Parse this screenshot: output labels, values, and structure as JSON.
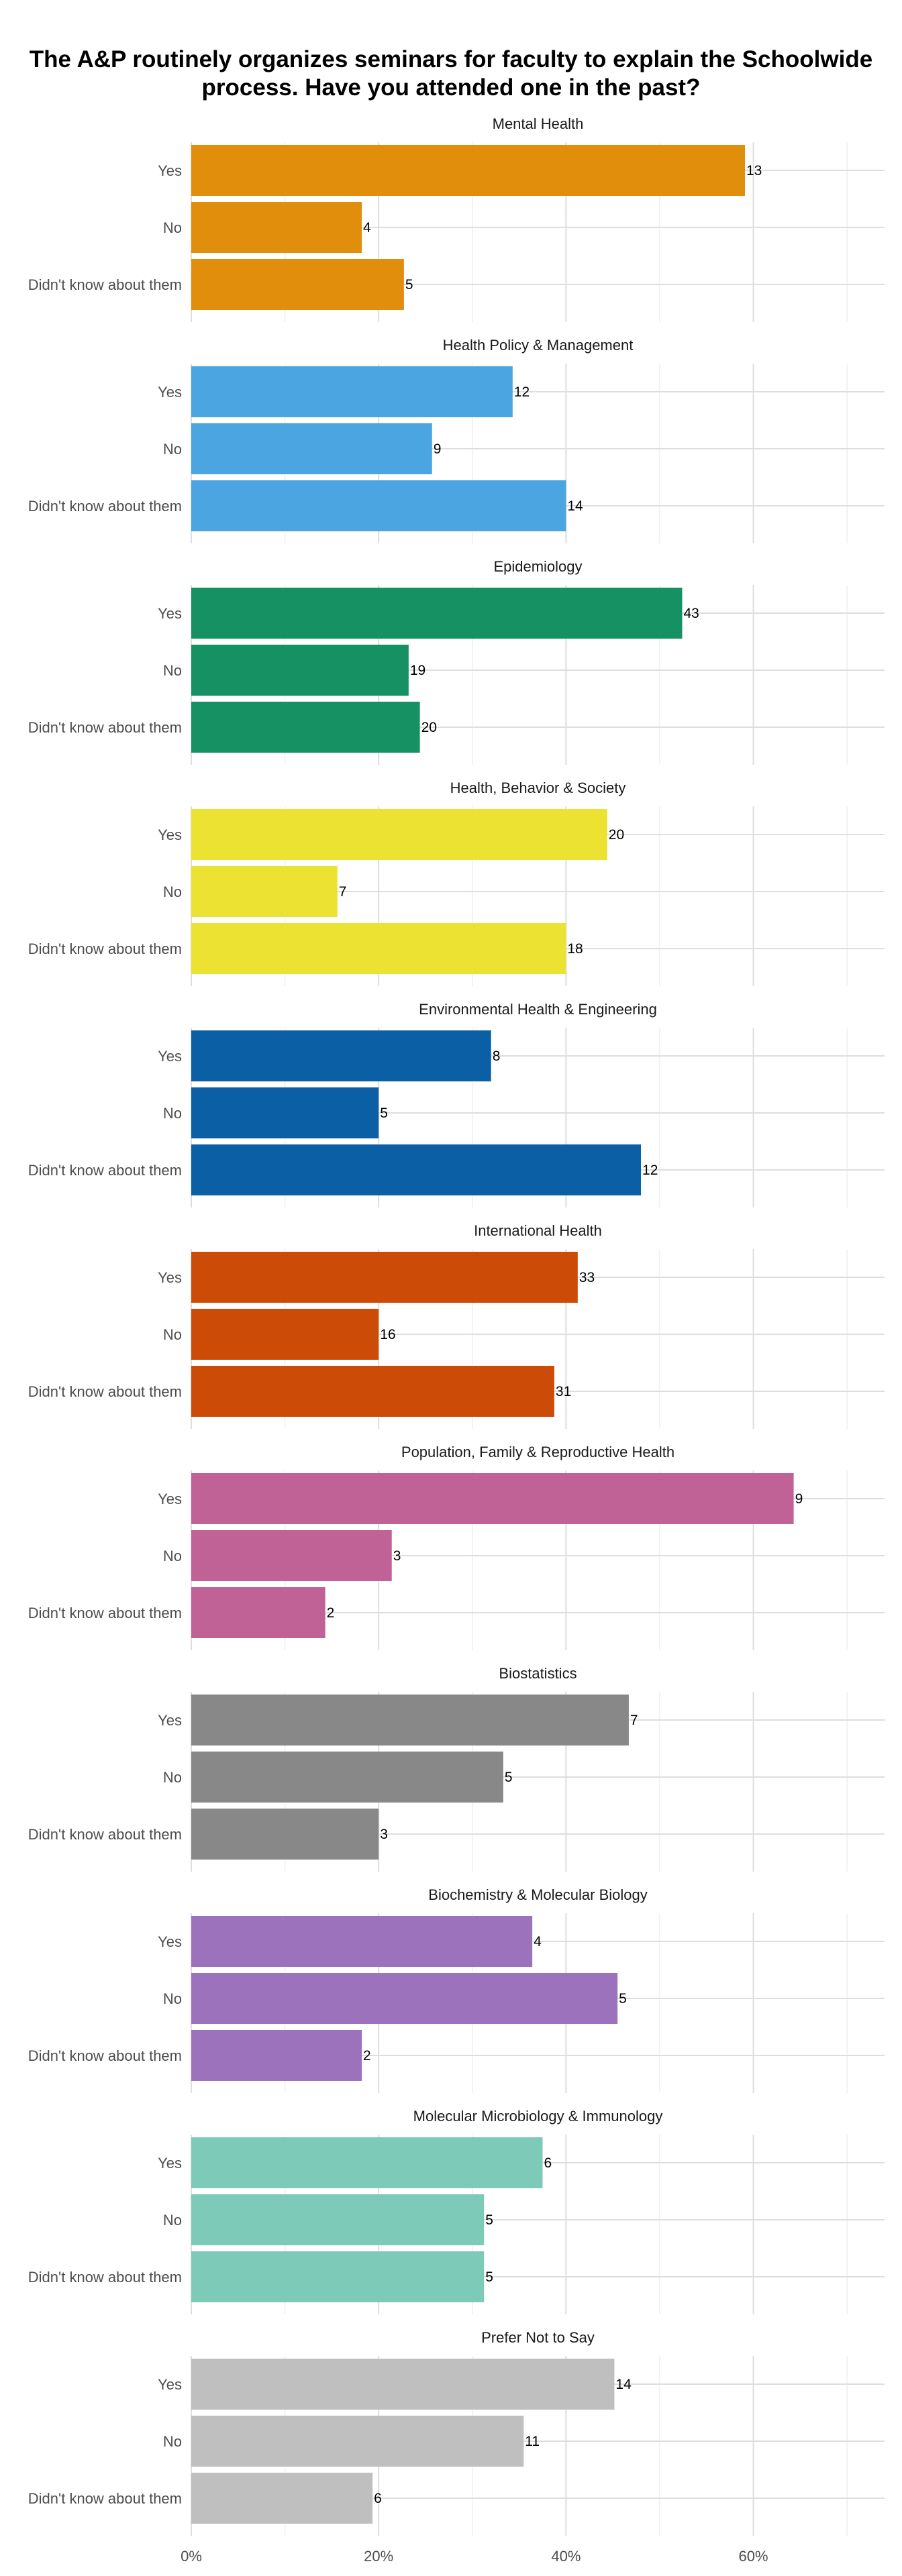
{
  "chart_data": {
    "type": "bar",
    "orientation": "horizontal",
    "title": "The A&P routinely organizes seminars for faculty to explain the Schoolwide process. Have you attended one in the past?",
    "categories": [
      "Yes",
      "No",
      "Didn't know about them"
    ],
    "xlim": [
      0,
      0.74
    ],
    "x_ticks": [
      {
        "value": 0,
        "label": "0%"
      },
      {
        "value": 0.2,
        "label": "20%"
      },
      {
        "value": 0.4,
        "label": "40%"
      },
      {
        "value": 0.6,
        "label": "60%"
      }
    ],
    "grid": true,
    "legend": "none",
    "panels": [
      {
        "name": "Mental Health",
        "color": "#E08E0B",
        "counts": [
          13,
          4,
          5
        ],
        "fractions": [
          0.591,
          0.182,
          0.227
        ]
      },
      {
        "name": "Health Policy & Management",
        "color": "#4AA5E0",
        "counts": [
          12,
          9,
          14
        ],
        "fractions": [
          0.343,
          0.257,
          0.4
        ]
      },
      {
        "name": "Epidemiology",
        "color": "#159163",
        "counts": [
          43,
          19,
          20
        ],
        "fractions": [
          0.524,
          0.232,
          0.244
        ]
      },
      {
        "name": "Health, Behavior & Society",
        "color": "#ECE232",
        "counts": [
          20,
          7,
          18
        ],
        "fractions": [
          0.444,
          0.156,
          0.4
        ]
      },
      {
        "name": "Environmental Health & Engineering",
        "color": "#0B5FA5",
        "counts": [
          8,
          5,
          12
        ],
        "fractions": [
          0.32,
          0.2,
          0.48
        ]
      },
      {
        "name": "International Health",
        "color": "#CC4C07",
        "counts": [
          33,
          16,
          31
        ],
        "fractions": [
          0.4125,
          0.2,
          0.3875
        ]
      },
      {
        "name": "Population, Family & Reproductive Health",
        "color": "#C16296",
        "counts": [
          9,
          3,
          2
        ],
        "fractions": [
          0.643,
          0.214,
          0.143
        ]
      },
      {
        "name": "Biostatistics",
        "color": "#888888",
        "counts": [
          7,
          5,
          3
        ],
        "fractions": [
          0.467,
          0.333,
          0.2
        ]
      },
      {
        "name": "Biochemistry & Molecular Biology",
        "color": "#9D72BC",
        "counts": [
          4,
          5,
          2
        ],
        "fractions": [
          0.364,
          0.455,
          0.182
        ]
      },
      {
        "name": "Molecular Microbiology & Immunology",
        "color": "#7ECAB8",
        "counts": [
          6,
          5,
          5
        ],
        "fractions": [
          0.375,
          0.3125,
          0.3125
        ]
      },
      {
        "name": "Prefer Not to Say",
        "color": "#BFBFBF",
        "counts": [
          14,
          11,
          6
        ],
        "fractions": [
          0.4516,
          0.3548,
          0.1935
        ]
      }
    ]
  }
}
